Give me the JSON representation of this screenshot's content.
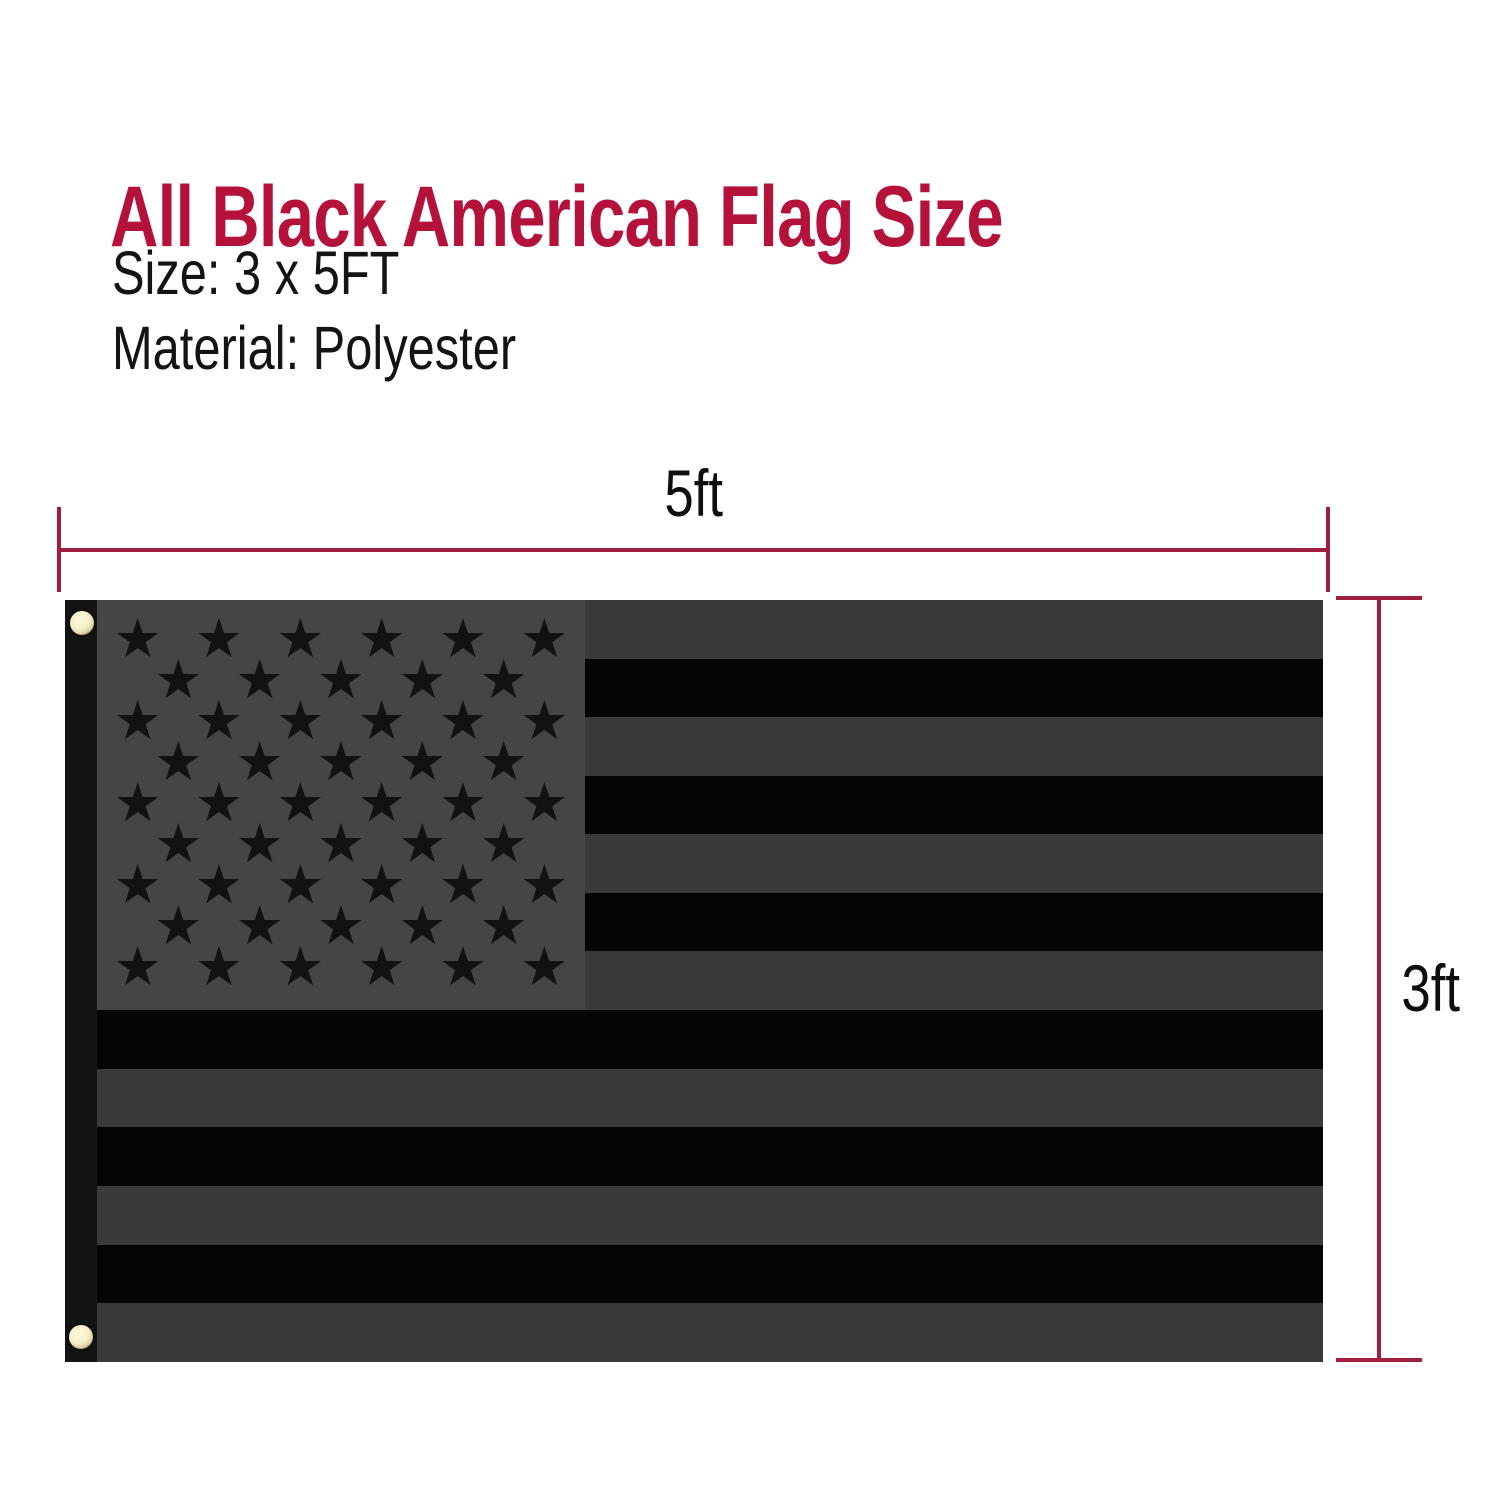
{
  "header": {
    "title": "All Black American Flag Size"
  },
  "specs": {
    "size": "Size: 3 x 5FT",
    "material": "Material: Polyester"
  },
  "dimensions": {
    "width_label": "5ft",
    "height_label": "3ft"
  },
  "colors": {
    "title": "#B5123B",
    "dimension_line": "#A21E3E",
    "body_text": "#141414",
    "flag_hoist": "#141414",
    "flag_canton": "#454547",
    "flag_gray_stripe": "#3A3A3C",
    "flag_black_stripe": "#050505",
    "flag_star": "#121214",
    "grommet_brass": "#F6F1C8"
  },
  "flag": {
    "star_glyph": "★",
    "star_rows": [
      6,
      5,
      6,
      5,
      6,
      5,
      6,
      5,
      6
    ],
    "stripes_right_of_canton": [
      "gray",
      "black",
      "gray",
      "black",
      "gray",
      "black",
      "gray"
    ],
    "stripes_below_canton": [
      "black",
      "gray",
      "black",
      "gray",
      "black",
      "gray"
    ],
    "grommet_count": 2
  }
}
